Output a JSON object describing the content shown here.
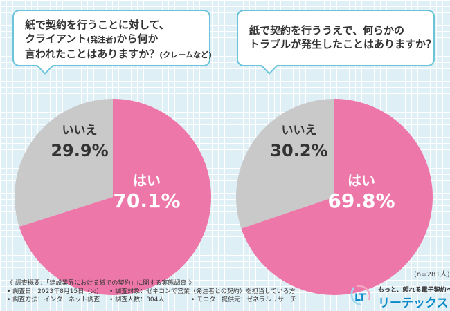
{
  "questions": {
    "q1": {
      "line1": "紙で契約を行うことに対して、",
      "line2a": "クライアント",
      "line2b": "(発注者)",
      "line2c": "から何か",
      "line3a": "言われたことはありますか？",
      "line3b": "(クレームなど)"
    },
    "q2": {
      "line1": "紙で契約を行ううえで、何らかの",
      "line2": "トラブルが発生したことはありますか？"
    }
  },
  "chart_data": [
    {
      "type": "pie",
      "title": "紙で契約を行うことに対して、クライアント(発注者)から何か言われたことはありますか？(クレームなど)",
      "categories": [
        "はい",
        "いいえ"
      ],
      "values": [
        70.1,
        29.9
      ],
      "labels": [
        "70.1%",
        "29.9%"
      ],
      "colors": [
        "#ee77a9",
        "#c9c9c9"
      ]
    },
    {
      "type": "pie",
      "title": "紙で契約を行ううえで、何らかのトラブルが発生したことはありますか？",
      "categories": [
        "はい",
        "いいえ"
      ],
      "values": [
        69.8,
        30.2
      ],
      "labels": [
        "69.8%",
        "30.2%"
      ],
      "colors": [
        "#ee77a9",
        "#c9c9c9"
      ]
    }
  ],
  "sample_note": "(n=281人)",
  "survey": {
    "title": "《 調査概要：「建設業界における紙での契約」に関する実態調査 》",
    "date": "• 調査日：2023年8月15日（火）",
    "target": "• 調査対象：ゼネコンで営業（発注者との契約）を担当している方",
    "method": "• 調査方法：インターネット調査",
    "count": "• 調査人数：304人",
    "provider": "• モニター提供元：ゼネラルリサーチ"
  },
  "logo": {
    "mark": "LT",
    "tagline": "もっと、頼れる電子契約へ",
    "name": "リーテックス"
  }
}
